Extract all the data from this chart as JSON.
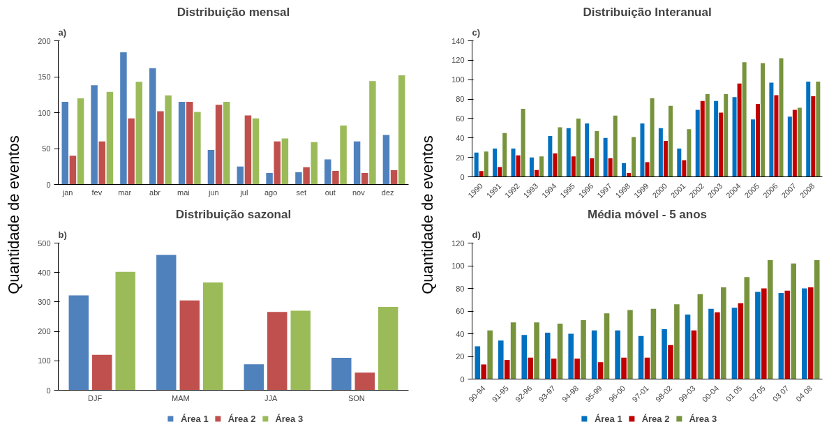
{
  "chart_data": [
    {
      "type": "bar",
      "title": "Distribuição mensal",
      "ylabel": "Quantidade de eventos",
      "annotations": [
        "a)"
      ],
      "categories": [
        "jan",
        "fev",
        "mar",
        "abr",
        "mai",
        "jun",
        "jul",
        "ago",
        "set",
        "out",
        "nov",
        "dez"
      ],
      "ylim": [
        0,
        200
      ],
      "yticks": [
        0,
        50,
        100,
        150,
        200
      ],
      "grid": false,
      "series": [
        {
          "color": "#4f81bd",
          "values": [
            115,
            138,
            184,
            162,
            115,
            48,
            25,
            16,
            17,
            35,
            60,
            69
          ]
        },
        {
          "color": "#c0504d",
          "values": [
            40,
            60,
            92,
            102,
            115,
            111,
            96,
            60,
            24,
            19,
            16,
            20
          ]
        },
        {
          "color": "#9bbb59",
          "values": [
            120,
            129,
            143,
            124,
            101,
            115,
            92,
            64,
            59,
            82,
            144,
            152
          ]
        }
      ]
    },
    {
      "type": "bar",
      "title": "Distribuição sazonal",
      "annotations": [
        "b)"
      ],
      "categories": [
        "DJF",
        "MAM",
        "JJA",
        "SON"
      ],
      "ylim": [
        0,
        500
      ],
      "yticks": [
        0,
        100,
        200,
        300,
        400,
        500
      ],
      "grid": false,
      "legend": "bottom",
      "series": [
        {
          "name": "Área 1",
          "color": "#4f81bd",
          "values": [
            322,
            460,
            88,
            110
          ]
        },
        {
          "name": "Área 2",
          "color": "#c0504d",
          "values": [
            120,
            305,
            266,
            60
          ]
        },
        {
          "name": "Área 3",
          "color": "#9bbb59",
          "values": [
            402,
            366,
            270,
            283
          ]
        }
      ]
    },
    {
      "type": "bar",
      "title": "Distribuição Interanual",
      "ylabel": "Quantidade de eventos",
      "annotations": [
        "c)"
      ],
      "categories": [
        "1990",
        "1991",
        "1992",
        "1993",
        "1994",
        "1995",
        "1996",
        "1997",
        "1998",
        "1999",
        "2000",
        "2001",
        "2002",
        "2003",
        "2004",
        "2005",
        "2006",
        "2007",
        "2008"
      ],
      "ylim": [
        0,
        140
      ],
      "yticks": [
        0,
        20,
        40,
        60,
        80,
        100,
        120,
        140
      ],
      "grid": false,
      "series": [
        {
          "color": "#0070c0",
          "values": [
            25,
            29,
            29,
            20,
            42,
            50,
            55,
            40,
            14,
            55,
            50,
            29,
            69,
            78,
            82,
            59,
            97,
            62,
            98
          ]
        },
        {
          "color": "#c00000",
          "values": [
            6,
            10,
            22,
            7,
            24,
            21,
            19,
            19,
            4,
            15,
            37,
            17,
            78,
            66,
            96,
            75,
            84,
            69,
            83
          ]
        },
        {
          "color": "#77933c",
          "values": [
            26,
            45,
            70,
            21,
            51,
            60,
            47,
            63,
            41,
            81,
            73,
            49,
            85,
            85,
            118,
            117,
            122,
            71,
            98
          ]
        }
      ]
    },
    {
      "type": "bar",
      "title": "Média móvel - 5 anos",
      "annotations": [
        "d)"
      ],
      "categories": [
        "90-94",
        "91-95",
        "92-96",
        "93-97",
        "94-98",
        "95-99",
        "96-00",
        "97-01",
        "98-02",
        "99-03",
        "00-04",
        "01 05",
        "02 05",
        "03 07",
        "04 08"
      ],
      "ylim": [
        0,
        120
      ],
      "yticks": [
        0,
        20,
        40,
        60,
        80,
        100,
        120
      ],
      "grid": false,
      "legend": "bottom",
      "series": [
        {
          "name": "Área 1",
          "color": "#0070c0",
          "values": [
            29,
            34,
            39,
            41,
            40,
            43,
            43,
            38,
            44,
            57,
            62,
            63,
            77,
            76,
            80
          ]
        },
        {
          "name": "Área 2",
          "color": "#c00000",
          "values": [
            13,
            17,
            19,
            18,
            18,
            15,
            19,
            19,
            30,
            43,
            59,
            67,
            80,
            78,
            81
          ]
        },
        {
          "name": "Área 3",
          "color": "#77933c",
          "values": [
            43,
            50,
            50,
            49,
            52,
            58,
            61,
            62,
            66,
            75,
            81,
            90,
            105,
            102,
            105
          ]
        }
      ]
    }
  ]
}
